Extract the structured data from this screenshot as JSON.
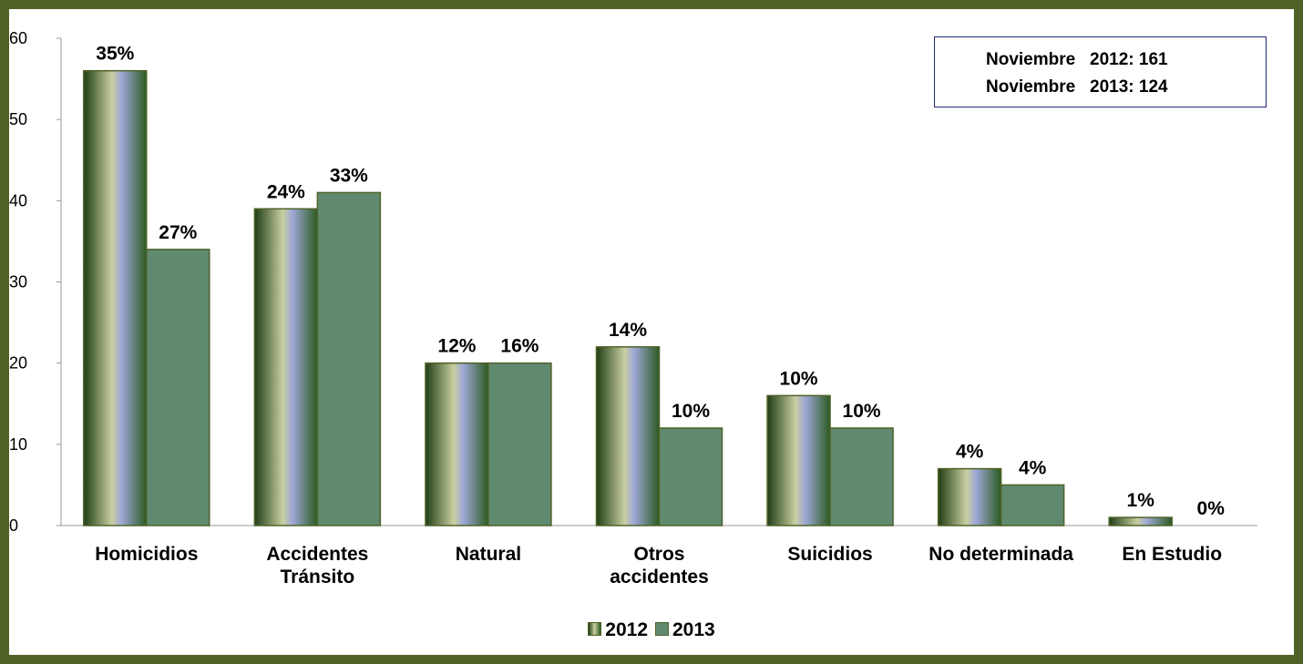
{
  "chart_data": {
    "type": "bar",
    "categories": [
      "Homicidios",
      "Accidentes Tránsito",
      "Natural",
      "Otros accidentes",
      "Suicidios",
      "No determinada",
      "En Estudio"
    ],
    "series": [
      {
        "name": "2012",
        "color": "#3d6b2b",
        "values": [
          56,
          39,
          20,
          22,
          16,
          7,
          1
        ],
        "value_labels": [
          "35%",
          "24%",
          "12%",
          "14%",
          "10%",
          "4%",
          "1%"
        ]
      },
      {
        "name": "2013",
        "color": "#5f8a70",
        "values": [
          34,
          41,
          20,
          12,
          12,
          5,
          0
        ],
        "value_labels": [
          "27%",
          "33%",
          "16%",
          "10%",
          "10%",
          "4%",
          "0%"
        ]
      }
    ],
    "ylim": [
      0,
      60
    ],
    "yticks": [
      0,
      10,
      20,
      30,
      40,
      50,
      60
    ],
    "annotations": [
      "Noviembre   2012: 161",
      "Noviembre   2013: 124"
    ]
  }
}
